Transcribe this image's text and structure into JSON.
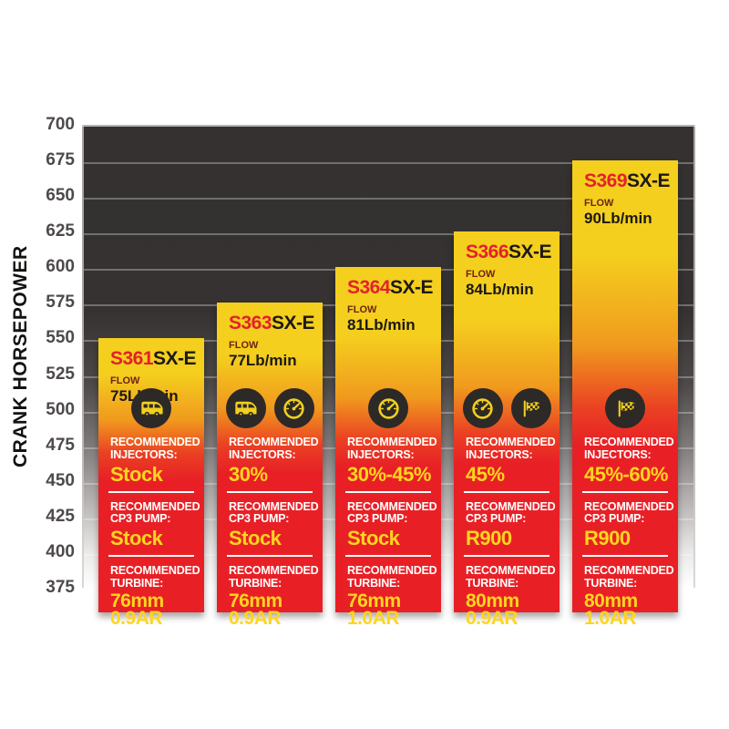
{
  "page": {
    "background": "#ffffff"
  },
  "y_axis": {
    "title": "CRANK HORSEPOWER",
    "ticks": [
      700,
      675,
      650,
      625,
      600,
      575,
      550,
      525,
      500,
      475,
      450,
      425,
      400,
      375
    ]
  },
  "chart_data": {
    "type": "bar",
    "title": "",
    "xlabel": "",
    "ylabel": "CRANK HORSEPOWER",
    "ylim": [
      375,
      700
    ],
    "gridline_step": 25,
    "grid": true,
    "legend": "none",
    "categories": [
      "S361SX-E",
      "S363SX-E",
      "S364SX-E",
      "S366SX-E",
      "S369SX-E"
    ],
    "values": [
      550,
      575,
      600,
      625,
      675
    ],
    "flow_lb_min": [
      75,
      77,
      81,
      84,
      90
    ]
  },
  "colors": {
    "bar_top_yellow": "#f4cf1e",
    "bar_bottom_red": "#e82026",
    "model_prefix_red": "#e3222a",
    "model_suffix_black": "#1c1917",
    "flow_label_maroon": "#6e2417",
    "value_yellow": "#ffd51e",
    "label_white": "#ffffff",
    "plot_dark": "#343130",
    "icon_badge_dark": "#2c2927",
    "icon_glyph_yellow": "#f2cf1e"
  },
  "bars": [
    {
      "model_prefix": "S361",
      "model_suffix": "SX-E",
      "flow_label": "FLOW",
      "flow_value": "75Lb/min",
      "crank_hp": 550,
      "icons": [
        "rv-icon"
      ],
      "injectors_label": "RECOMMENDED INJECTORS:",
      "injectors_value": "Stock",
      "cp3_label": "RECOMMENDED CP3 PUMP:",
      "cp3_value": "Stock",
      "turbine_label": "RECOMMENDED TURBINE:",
      "turbine_line1": "76mm",
      "turbine_line2": "0.9AR"
    },
    {
      "model_prefix": "S363",
      "model_suffix": "SX-E",
      "flow_label": "FLOW",
      "flow_value": "77Lb/min",
      "crank_hp": 575,
      "icons": [
        "rv-icon",
        "gauge-icon"
      ],
      "injectors_label": "RECOMMENDED INJECTORS:",
      "injectors_value": "30%",
      "cp3_label": "RECOMMENDED CP3 PUMP:",
      "cp3_value": "Stock",
      "turbine_label": "RECOMMENDED TURBINE:",
      "turbine_line1": "76mm",
      "turbine_line2": "0.9AR"
    },
    {
      "model_prefix": "S364",
      "model_suffix": "SX-E",
      "flow_label": "FLOW",
      "flow_value": "81Lb/min",
      "crank_hp": 600,
      "icons": [
        "gauge-icon"
      ],
      "injectors_label": "RECOMMENDED INJECTORS:",
      "injectors_value": "30%-45%",
      "cp3_label": "RECOMMENDED CP3 PUMP:",
      "cp3_value": "Stock",
      "turbine_label": "RECOMMENDED TURBINE:",
      "turbine_line1": "76mm",
      "turbine_line2": "1.0AR"
    },
    {
      "model_prefix": "S366",
      "model_suffix": "SX-E",
      "flow_label": "FLOW",
      "flow_value": "84Lb/min",
      "crank_hp": 625,
      "icons": [
        "gauge-icon",
        "flag-icon"
      ],
      "injectors_label": "RECOMMENDED INJECTORS:",
      "injectors_value": "45%",
      "cp3_label": "RECOMMENDED CP3 PUMP:",
      "cp3_value": "R900",
      "turbine_label": "RECOMMENDED TURBINE:",
      "turbine_line1": "80mm",
      "turbine_line2": "0.9AR"
    },
    {
      "model_prefix": "S369",
      "model_suffix": "SX-E",
      "flow_label": "FLOW",
      "flow_value": "90Lb/min",
      "crank_hp": 675,
      "icons": [
        "flag-icon"
      ],
      "injectors_label": "RECOMMENDED INJECTORS:",
      "injectors_value": "45%-60%",
      "cp3_label": "RECOMMENDED CP3 PUMP:",
      "cp3_value": "R900",
      "turbine_label": "RECOMMENDED TURBINE:",
      "turbine_line1": "80mm",
      "turbine_line2": "1.0AR"
    }
  ]
}
